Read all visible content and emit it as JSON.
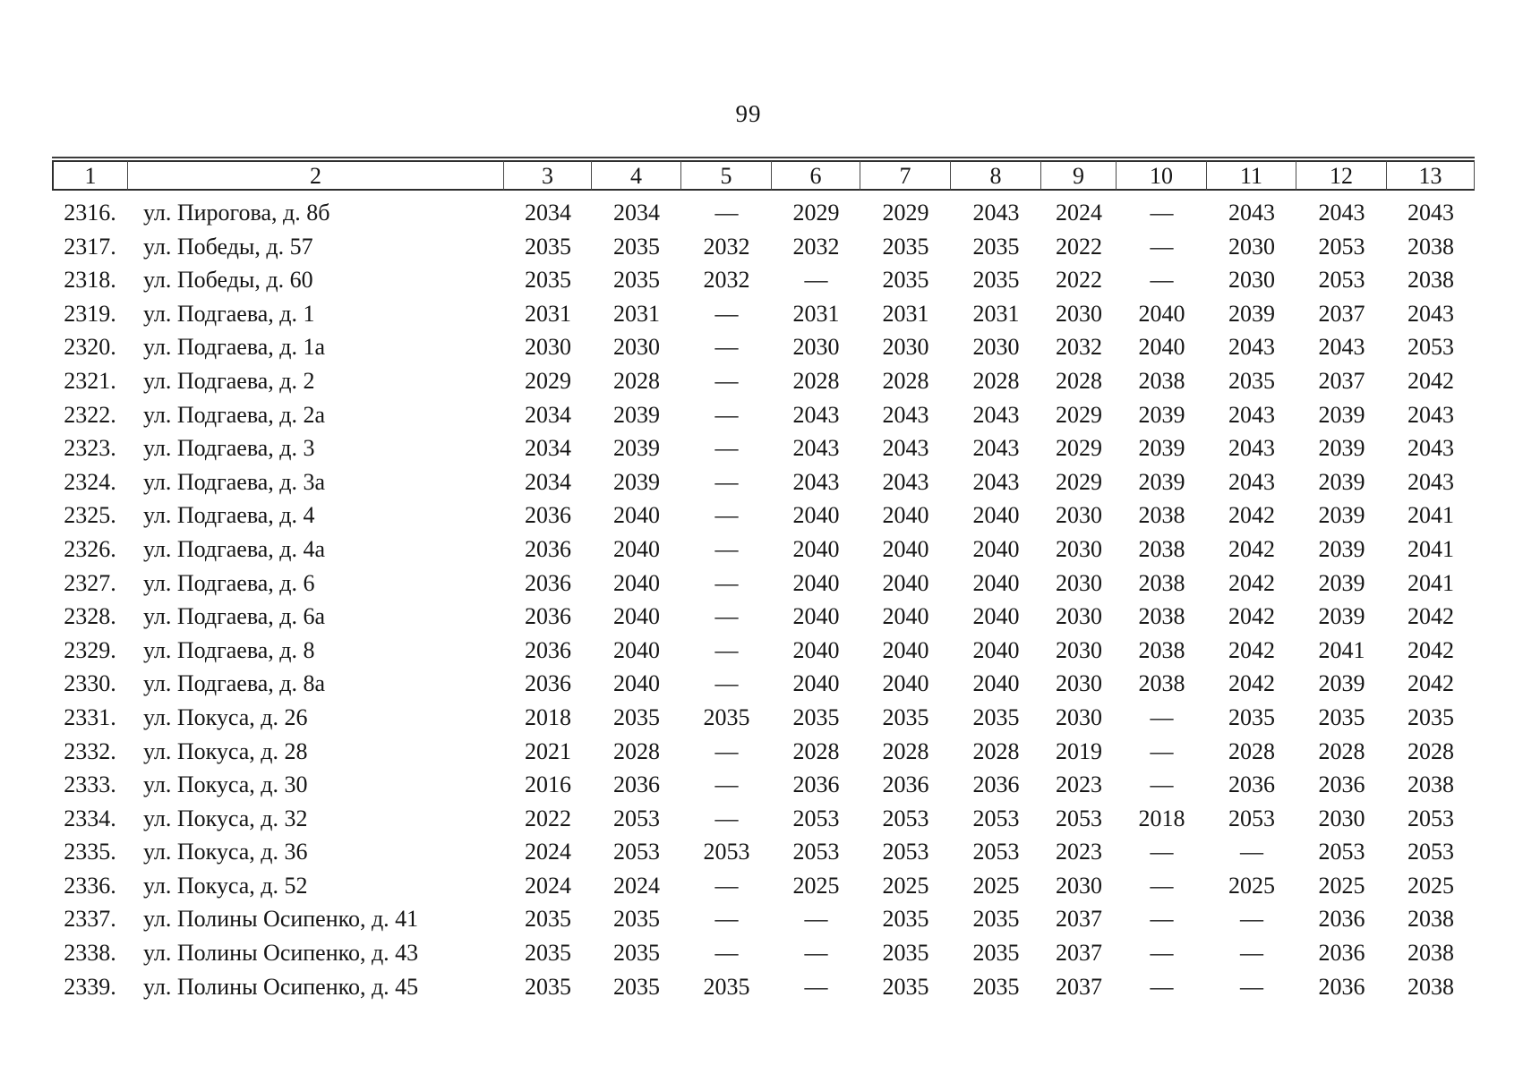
{
  "page": {
    "number": "99"
  },
  "table": {
    "column_headers": [
      "1",
      "2",
      "3",
      "4",
      "5",
      "6",
      "7",
      "8",
      "9",
      "10",
      "11",
      "12",
      "13"
    ],
    "rows": [
      {
        "num": "2316.",
        "address": "ул. Пирогова, д. 8б",
        "values": [
          "2034",
          "2034",
          "—",
          "2029",
          "2029",
          "2043",
          "2024",
          "—",
          "2043",
          "2043",
          "2043"
        ]
      },
      {
        "num": "2317.",
        "address": "ул. Победы, д. 57",
        "values": [
          "2035",
          "2035",
          "2032",
          "2032",
          "2035",
          "2035",
          "2022",
          "—",
          "2030",
          "2053",
          "2038"
        ]
      },
      {
        "num": "2318.",
        "address": "ул. Победы, д. 60",
        "values": [
          "2035",
          "2035",
          "2032",
          "—",
          "2035",
          "2035",
          "2022",
          "—",
          "2030",
          "2053",
          "2038"
        ]
      },
      {
        "num": "2319.",
        "address": "ул. Подгаева, д. 1",
        "values": [
          "2031",
          "2031",
          "—",
          "2031",
          "2031",
          "2031",
          "2030",
          "2040",
          "2039",
          "2037",
          "2043"
        ]
      },
      {
        "num": "2320.",
        "address": "ул. Подгаева, д. 1а",
        "values": [
          "2030",
          "2030",
          "—",
          "2030",
          "2030",
          "2030",
          "2032",
          "2040",
          "2043",
          "2043",
          "2053"
        ]
      },
      {
        "num": "2321.",
        "address": "ул. Подгаева, д. 2",
        "values": [
          "2029",
          "2028",
          "—",
          "2028",
          "2028",
          "2028",
          "2028",
          "2038",
          "2035",
          "2037",
          "2042"
        ]
      },
      {
        "num": "2322.",
        "address": "ул. Подгаева, д. 2а",
        "values": [
          "2034",
          "2039",
          "—",
          "2043",
          "2043",
          "2043",
          "2029",
          "2039",
          "2043",
          "2039",
          "2043"
        ]
      },
      {
        "num": "2323.",
        "address": "ул. Подгаева, д. 3",
        "values": [
          "2034",
          "2039",
          "—",
          "2043",
          "2043",
          "2043",
          "2029",
          "2039",
          "2043",
          "2039",
          "2043"
        ]
      },
      {
        "num": "2324.",
        "address": "ул. Подгаева, д. 3а",
        "values": [
          "2034",
          "2039",
          "—",
          "2043",
          "2043",
          "2043",
          "2029",
          "2039",
          "2043",
          "2039",
          "2043"
        ]
      },
      {
        "num": "2325.",
        "address": "ул. Подгаева, д. 4",
        "values": [
          "2036",
          "2040",
          "—",
          "2040",
          "2040",
          "2040",
          "2030",
          "2038",
          "2042",
          "2039",
          "2041"
        ]
      },
      {
        "num": "2326.",
        "address": "ул. Подгаева, д. 4а",
        "values": [
          "2036",
          "2040",
          "—",
          "2040",
          "2040",
          "2040",
          "2030",
          "2038",
          "2042",
          "2039",
          "2041"
        ]
      },
      {
        "num": "2327.",
        "address": "ул. Подгаева, д. 6",
        "values": [
          "2036",
          "2040",
          "—",
          "2040",
          "2040",
          "2040",
          "2030",
          "2038",
          "2042",
          "2039",
          "2041"
        ]
      },
      {
        "num": "2328.",
        "address": "ул. Подгаева, д. 6а",
        "values": [
          "2036",
          "2040",
          "—",
          "2040",
          "2040",
          "2040",
          "2030",
          "2038",
          "2042",
          "2039",
          "2042"
        ]
      },
      {
        "num": "2329.",
        "address": "ул. Подгаева, д. 8",
        "values": [
          "2036",
          "2040",
          "—",
          "2040",
          "2040",
          "2040",
          "2030",
          "2038",
          "2042",
          "2041",
          "2042"
        ]
      },
      {
        "num": "2330.",
        "address": "ул. Подгаева, д. 8а",
        "values": [
          "2036",
          "2040",
          "—",
          "2040",
          "2040",
          "2040",
          "2030",
          "2038",
          "2042",
          "2039",
          "2042"
        ]
      },
      {
        "num": "2331.",
        "address": "ул. Покуса, д. 26",
        "values": [
          "2018",
          "2035",
          "2035",
          "2035",
          "2035",
          "2035",
          "2030",
          "—",
          "2035",
          "2035",
          "2035"
        ]
      },
      {
        "num": "2332.",
        "address": "ул. Покуса, д. 28",
        "values": [
          "2021",
          "2028",
          "—",
          "2028",
          "2028",
          "2028",
          "2019",
          "—",
          "2028",
          "2028",
          "2028"
        ]
      },
      {
        "num": "2333.",
        "address": "ул. Покуса, д. 30",
        "values": [
          "2016",
          "2036",
          "—",
          "2036",
          "2036",
          "2036",
          "2023",
          "—",
          "2036",
          "2036",
          "2038"
        ]
      },
      {
        "num": "2334.",
        "address": "ул. Покуса, д. 32",
        "values": [
          "2022",
          "2053",
          "—",
          "2053",
          "2053",
          "2053",
          "2053",
          "2018",
          "2053",
          "2030",
          "2053"
        ]
      },
      {
        "num": "2335.",
        "address": "ул. Покуса, д. 36",
        "values": [
          "2024",
          "2053",
          "2053",
          "2053",
          "2053",
          "2053",
          "2023",
          "—",
          "—",
          "2053",
          "2053"
        ]
      },
      {
        "num": "2336.",
        "address": "ул. Покуса, д. 52",
        "values": [
          "2024",
          "2024",
          "—",
          "2025",
          "2025",
          "2025",
          "2030",
          "—",
          "2025",
          "2025",
          "2025"
        ]
      },
      {
        "num": "2337.",
        "address": "ул. Полины Осипенко, д. 41",
        "values": [
          "2035",
          "2035",
          "—",
          "—",
          "2035",
          "2035",
          "2037",
          "—",
          "—",
          "2036",
          "2038"
        ]
      },
      {
        "num": "2338.",
        "address": "ул. Полины Осипенко, д. 43",
        "values": [
          "2035",
          "2035",
          "—",
          "—",
          "2035",
          "2035",
          "2037",
          "—",
          "—",
          "2036",
          "2038"
        ]
      },
      {
        "num": "2339.",
        "address": "ул. Полины Осипенко, д. 45",
        "values": [
          "2035",
          "2035",
          "2035",
          "—",
          "2035",
          "2035",
          "2037",
          "—",
          "—",
          "2036",
          "2038"
        ]
      }
    ]
  }
}
